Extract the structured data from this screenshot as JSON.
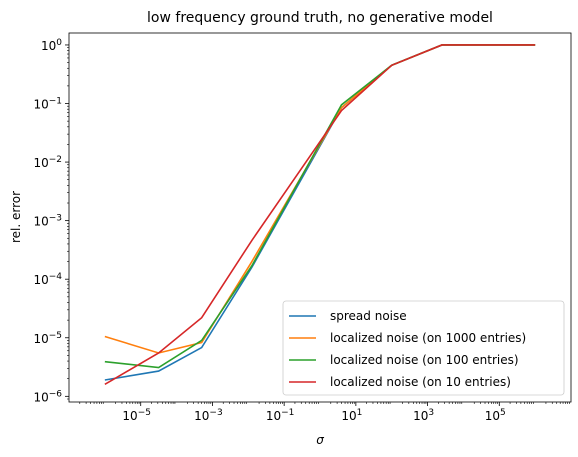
{
  "chart_data": {
    "type": "line",
    "title": "low frequency ground truth, no generative model",
    "xlabel": "σ",
    "ylabel": "rel. error",
    "xscale": "log",
    "yscale": "log",
    "xlim": [
      1e-07,
      10000000.0
    ],
    "ylim": [
      8e-07,
      1.6
    ],
    "x_tick_labels": [
      {
        "value": 1e-05,
        "base": "10",
        "exp": "−5"
      },
      {
        "value": 0.001,
        "base": "10",
        "exp": "−3"
      },
      {
        "value": 0.1,
        "base": "10",
        "exp": "−1"
      },
      {
        "value": 10.0,
        "base": "10",
        "exp": "1"
      },
      {
        "value": 1000.0,
        "base": "10",
        "exp": "3"
      },
      {
        "value": 100000.0,
        "base": "10",
        "exp": "5"
      }
    ],
    "y_tick_labels": [
      {
        "value": 1e-06,
        "base": "10",
        "exp": "−6"
      },
      {
        "value": 1e-05,
        "base": "10",
        "exp": "−5"
      },
      {
        "value": 0.0001,
        "base": "10",
        "exp": "−4"
      },
      {
        "value": 0.001,
        "base": "10",
        "exp": "−3"
      },
      {
        "value": 0.01,
        "base": "10",
        "exp": "−2"
      },
      {
        "value": 0.1,
        "base": "10",
        "exp": "−1"
      },
      {
        "value": 1.0,
        "base": "10",
        "exp": "0"
      }
    ],
    "grid": false,
    "legend_position": "lower-right",
    "x": [
      1e-06,
      3.16e-05,
      0.000501,
      0.0126,
      3.98,
      100,
      2510.0,
      1000000.0
    ],
    "series": [
      {
        "name": "spread noise",
        "color": "#1f77b4",
        "values": [
          1.9e-06,
          2.7e-06,
          6.8e-06,
          0.00016,
          0.085,
          0.45,
          1.0,
          1.0
        ]
      },
      {
        "name": "localized noise (on 1000 entries)",
        "color": "#ff7f0e",
        "values": [
          1.05e-05,
          5.5e-06,
          8.3e-06,
          0.0002,
          0.085,
          0.45,
          1.0,
          1.0
        ]
      },
      {
        "name": "localized noise (on 100 entries)",
        "color": "#2ca02c",
        "values": [
          3.9e-06,
          3.1e-06,
          9e-06,
          0.00017,
          0.095,
          0.45,
          1.0,
          1.0
        ]
      },
      {
        "name": "localized noise (on 10 entries)",
        "color": "#d62728",
        "values": [
          1.6e-06,
          5.5e-06,
          2.2e-05,
          0.00046,
          0.076,
          0.45,
          1.0,
          1.0
        ]
      }
    ]
  }
}
